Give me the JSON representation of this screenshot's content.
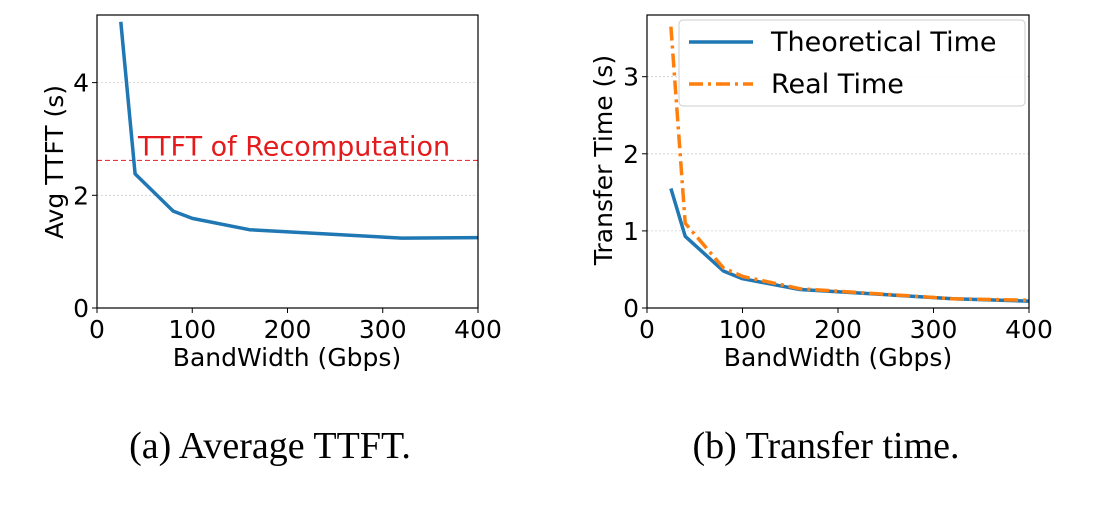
{
  "chart_data": [
    {
      "type": "line",
      "xlabel": "BandWidth (Gbps)",
      "ylabel": "Avg TTFT (s)",
      "xlim": [
        0,
        400
      ],
      "ylim": [
        0,
        5.2
      ],
      "xticks": [
        "0",
        "100",
        "200",
        "300",
        "400"
      ],
      "yticks": [
        "0",
        "2",
        "4"
      ],
      "grid": "horizontal",
      "caption": "(a) Average TTFT.",
      "series": [
        {
          "color": "#1f77b4",
          "style": "solid",
          "x": [
            25,
            40,
            80,
            100,
            160,
            320,
            400
          ],
          "y": [
            5.08,
            2.38,
            1.72,
            1.59,
            1.39,
            1.24,
            1.25
          ]
        }
      ],
      "annotations": [
        {
          "text": "TTFT of Recomputation",
          "y": 2.62,
          "color": "#e41a1c",
          "style": "dashed"
        }
      ]
    },
    {
      "type": "line",
      "xlabel": "BandWidth (Gbps)",
      "ylabel": "Transfer Time (s)",
      "xlim": [
        0,
        400
      ],
      "ylim": [
        0,
        3.8
      ],
      "xticks": [
        "0",
        "100",
        "200",
        "300",
        "400"
      ],
      "yticks": [
        "0",
        "1",
        "2",
        "3"
      ],
      "grid": "horizontal",
      "legend": "top-right",
      "caption": "(b) Transfer time.",
      "series": [
        {
          "name": "Theoretical Time",
          "color": "#1f77b4",
          "style": "solid",
          "x": [
            25,
            40,
            80,
            100,
            160,
            320,
            400
          ],
          "y": [
            1.55,
            0.93,
            0.48,
            0.38,
            0.24,
            0.12,
            0.09
          ]
        },
        {
          "name": "Real Time",
          "color": "#ff7f0e",
          "style": "dashdot",
          "x": [
            25,
            40,
            80,
            100,
            160,
            320,
            400
          ],
          "y": [
            3.65,
            1.1,
            0.52,
            0.41,
            0.25,
            0.12,
            0.1
          ]
        }
      ]
    }
  ]
}
